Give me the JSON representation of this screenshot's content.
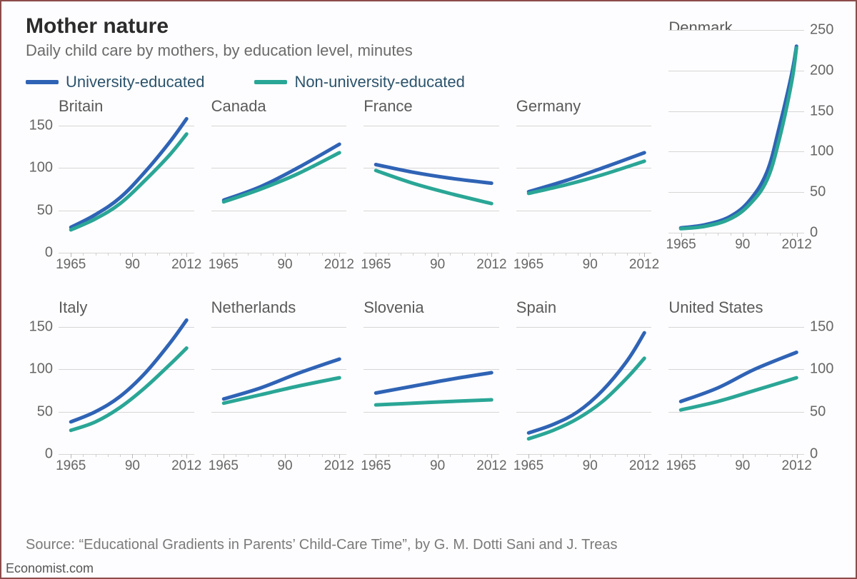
{
  "title": "Mother nature",
  "subtitle": "Daily child care by mothers, by education level, minutes",
  "source": "Source: “Educational Gradients in Parents’ Child-Care Time”, by G. M. Dotti Sani and J. Treas",
  "brand": "Economist.com",
  "legend": {
    "items": [
      {
        "label": "University-educated",
        "color": "#2f63b5"
      },
      {
        "label": "Non-university-educated",
        "color": "#2aa696"
      }
    ]
  },
  "style": {
    "line_width": 5,
    "grid_color": "#d6d6d6",
    "axis_text_color": "#666",
    "panel_title_font_size": 22,
    "background_color": "#fdfdff"
  },
  "xaxis": {
    "min": 1960,
    "max": 2015,
    "major_ticks": [
      1965,
      1990,
      2012
    ],
    "major_labels": [
      "1965",
      "90",
      "2012"
    ],
    "minor_step": 5
  },
  "rows": [
    {
      "ytick_step": 50,
      "yaxis_side_first": "left",
      "ylim_default": [
        0,
        160
      ],
      "panels": [
        {
          "title": "Britain",
          "ylim": [
            0,
            160
          ],
          "series": [
            {
              "key": 0,
              "points": [
                [
                  1965,
                  30
                ],
                [
                  1975,
                  45
                ],
                [
                  1985,
                  65
                ],
                [
                  1995,
                  95
                ],
                [
                  2005,
                  130
                ],
                [
                  2012,
                  158
                ]
              ]
            },
            {
              "key": 1,
              "points": [
                [
                  1965,
                  27
                ],
                [
                  1975,
                  40
                ],
                [
                  1985,
                  58
                ],
                [
                  1995,
                  85
                ],
                [
                  2005,
                  115
                ],
                [
                  2012,
                  140
                ]
              ]
            }
          ]
        },
        {
          "title": "Canada",
          "ylim": [
            0,
            160
          ],
          "series": [
            {
              "key": 0,
              "points": [
                [
                  1965,
                  62
                ],
                [
                  1980,
                  78
                ],
                [
                  1995,
                  100
                ],
                [
                  2012,
                  128
                ]
              ]
            },
            {
              "key": 1,
              "points": [
                [
                  1965,
                  60
                ],
                [
                  1980,
                  75
                ],
                [
                  1995,
                  93
                ],
                [
                  2012,
                  118
                ]
              ]
            }
          ]
        },
        {
          "title": "France",
          "ylim": [
            0,
            160
          ],
          "series": [
            {
              "key": 0,
              "points": [
                [
                  1965,
                  104
                ],
                [
                  1980,
                  95
                ],
                [
                  1995,
                  88
                ],
                [
                  2012,
                  82
                ]
              ]
            },
            {
              "key": 1,
              "points": [
                [
                  1965,
                  97
                ],
                [
                  1980,
                  82
                ],
                [
                  1995,
                  70
                ],
                [
                  2012,
                  58
                ]
              ]
            }
          ]
        },
        {
          "title": "Germany",
          "ylim": [
            0,
            160
          ],
          "series": [
            {
              "key": 0,
              "points": [
                [
                  1965,
                  72
                ],
                [
                  1980,
                  85
                ],
                [
                  1995,
                  100
                ],
                [
                  2012,
                  118
                ]
              ]
            },
            {
              "key": 1,
              "points": [
                [
                  1965,
                  70
                ],
                [
                  1980,
                  80
                ],
                [
                  1995,
                  92
                ],
                [
                  2012,
                  108
                ]
              ]
            }
          ]
        },
        {
          "title": "Denmark",
          "ylim": [
            0,
            250
          ],
          "tall": true,
          "series": [
            {
              "key": 0,
              "points": [
                [
                  1965,
                  6
                ],
                [
                  1975,
                  10
                ],
                [
                  1985,
                  20
                ],
                [
                  1993,
                  40
                ],
                [
                  2000,
                  75
                ],
                [
                  2005,
                  130
                ],
                [
                  2010,
                  195
                ],
                [
                  2012,
                  230
                ]
              ]
            },
            {
              "key": 1,
              "points": [
                [
                  1965,
                  5
                ],
                [
                  1975,
                  8
                ],
                [
                  1985,
                  17
                ],
                [
                  1993,
                  35
                ],
                [
                  2000,
                  65
                ],
                [
                  2005,
                  115
                ],
                [
                  2010,
                  185
                ],
                [
                  2012,
                  228
                ]
              ]
            }
          ]
        }
      ]
    },
    {
      "ytick_step": 50,
      "yaxis_side_first": "left",
      "ylim_default": [
        0,
        160
      ],
      "panels": [
        {
          "title": "Italy",
          "ylim": [
            0,
            160
          ],
          "series": [
            {
              "key": 0,
              "points": [
                [
                  1965,
                  38
                ],
                [
                  1975,
                  50
                ],
                [
                  1985,
                  68
                ],
                [
                  1995,
                  95
                ],
                [
                  2005,
                  130
                ],
                [
                  2012,
                  158
                ]
              ]
            },
            {
              "key": 1,
              "points": [
                [
                  1965,
                  28
                ],
                [
                  1975,
                  38
                ],
                [
                  1985,
                  55
                ],
                [
                  1995,
                  78
                ],
                [
                  2005,
                  105
                ],
                [
                  2012,
                  125
                ]
              ]
            }
          ]
        },
        {
          "title": "Netherlands",
          "ylim": [
            0,
            160
          ],
          "series": [
            {
              "key": 0,
              "points": [
                [
                  1965,
                  65
                ],
                [
                  1980,
                  78
                ],
                [
                  1995,
                  95
                ],
                [
                  2012,
                  112
                ]
              ]
            },
            {
              "key": 1,
              "points": [
                [
                  1965,
                  60
                ],
                [
                  1980,
                  70
                ],
                [
                  1995,
                  80
                ],
                [
                  2012,
                  90
                ]
              ]
            }
          ]
        },
        {
          "title": "Slovenia",
          "ylim": [
            0,
            160
          ],
          "series": [
            {
              "key": 0,
              "points": [
                [
                  1965,
                  72
                ],
                [
                  1980,
                  80
                ],
                [
                  1995,
                  88
                ],
                [
                  2012,
                  96
                ]
              ]
            },
            {
              "key": 1,
              "points": [
                [
                  1965,
                  58
                ],
                [
                  1980,
                  60
                ],
                [
                  1995,
                  62
                ],
                [
                  2012,
                  64
                ]
              ]
            }
          ]
        },
        {
          "title": "Spain",
          "ylim": [
            0,
            160
          ],
          "series": [
            {
              "key": 0,
              "points": [
                [
                  1965,
                  25
                ],
                [
                  1975,
                  35
                ],
                [
                  1985,
                  50
                ],
                [
                  1995,
                  75
                ],
                [
                  2005,
                  110
                ],
                [
                  2012,
                  143
                ]
              ]
            },
            {
              "key": 1,
              "points": [
                [
                  1965,
                  18
                ],
                [
                  1975,
                  28
                ],
                [
                  1985,
                  42
                ],
                [
                  1995,
                  62
                ],
                [
                  2005,
                  90
                ],
                [
                  2012,
                  113
                ]
              ]
            }
          ]
        },
        {
          "title": "United States",
          "ylim": [
            0,
            160
          ],
          "series": [
            {
              "key": 0,
              "points": [
                [
                  1965,
                  62
                ],
                [
                  1980,
                  78
                ],
                [
                  1995,
                  100
                ],
                [
                  2012,
                  120
                ]
              ]
            },
            {
              "key": 1,
              "points": [
                [
                  1965,
                  52
                ],
                [
                  1980,
                  62
                ],
                [
                  1995,
                  75
                ],
                [
                  2012,
                  90
                ]
              ]
            }
          ]
        }
      ]
    }
  ]
}
